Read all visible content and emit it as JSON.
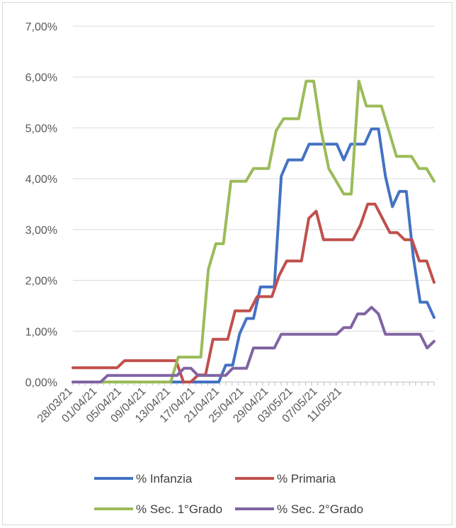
{
  "chart_data": {
    "type": "line",
    "title": "",
    "xlabel": "",
    "ylabel": "",
    "ylim": [
      0,
      0.07
    ],
    "y_ticks": [
      "0,00%",
      "1,00%",
      "2,00%",
      "3,00%",
      "4,00%",
      "5,00%",
      "6,00%",
      "7,00%"
    ],
    "x_tick_labels": [
      "28/03/21",
      "01/04/21",
      "05/04/21",
      "09/04/21",
      "13/04/21",
      "17/04/21",
      "21/04/21",
      "25/04/21",
      "29/04/21",
      "03/05/21",
      "07/05/21",
      "11/05/21"
    ],
    "x_start": "28/03/21",
    "x_end": "15/05/21",
    "grid": "horizontal",
    "legend_position": "bottom",
    "series": [
      {
        "name": "% Infanzia",
        "color": "#4472c4",
        "values": [
          0,
          0,
          0,
          0,
          0,
          0,
          0,
          0,
          0,
          0,
          0,
          0,
          0,
          0,
          0,
          0,
          0,
          0,
          0,
          0,
          0,
          0,
          0.0033,
          0.0033,
          0.0095,
          0.0125,
          0.0125,
          0.0187,
          0.0187,
          0.0187,
          0.0405,
          0.0437,
          0.0437,
          0.0437,
          0.0468,
          0.0468,
          0.0468,
          0.0468,
          0.0468,
          0.0437,
          0.0468,
          0.0468,
          0.0468,
          0.0498,
          0.0498,
          0.0405,
          0.0345,
          0.0375,
          0.0375,
          0.0247,
          0.0157,
          0.0157,
          0.0127
        ]
      },
      {
        "name": "% Primaria",
        "color": "#c0504d",
        "values": [
          0.0028,
          0.0028,
          0.0028,
          0.0028,
          0.0028,
          0.0028,
          0.0028,
          0.0042,
          0.0042,
          0.0042,
          0.0042,
          0.0042,
          0.0042,
          0.0042,
          0.0042,
          0,
          0,
          0.0014,
          0.0014,
          0.0084,
          0.0084,
          0.0084,
          0.014,
          0.014,
          0.014,
          0.0168,
          0.0168,
          0.0168,
          0.021,
          0.0238,
          0.0238,
          0.0238,
          0.0322,
          0.0336,
          0.028,
          0.028,
          0.028,
          0.028,
          0.028,
          0.0308,
          0.035,
          0.035,
          0.0322,
          0.0294,
          0.0294,
          0.028,
          0.028,
          0.0238,
          0.0238,
          0.0196
        ]
      },
      {
        "name": "% Sec. 1°Grado",
        "color": "#9bbb59",
        "values": [
          0,
          0,
          0,
          0,
          0,
          0,
          0,
          0,
          0,
          0,
          0,
          0,
          0,
          0,
          0.0049,
          0.0049,
          0.0049,
          0.0049,
          0.0222,
          0.0272,
          0.0272,
          0.0395,
          0.0395,
          0.0395,
          0.042,
          0.042,
          0.042,
          0.0494,
          0.0518,
          0.0518,
          0.0518,
          0.0592,
          0.0592,
          0.0494,
          0.042,
          0.0395,
          0.037,
          0.037,
          0.0592,
          0.0543,
          0.0543,
          0.0543,
          0.0494,
          0.0444,
          0.0444,
          0.0444,
          0.042,
          0.042,
          0.0395
        ]
      },
      {
        "name": "% Sec. 2°Grado",
        "color": "#8064a2",
        "values": [
          0,
          0,
          0,
          0,
          0,
          0.0013,
          0.0013,
          0.0013,
          0.0013,
          0.0013,
          0.0013,
          0.0013,
          0.0013,
          0.0013,
          0.0013,
          0.0013,
          0.0027,
          0.0027,
          0.0013,
          0.0013,
          0.0013,
          0.0013,
          0.0013,
          0.0027,
          0.0027,
          0.0027,
          0.0067,
          0.0067,
          0.0067,
          0.0067,
          0.0094,
          0.0094,
          0.0094,
          0.0094,
          0.0094,
          0.0094,
          0.0094,
          0.0094,
          0.0094,
          0.0107,
          0.0107,
          0.0134,
          0.0134,
          0.0147,
          0.0134,
          0.0094,
          0.0094,
          0.0094,
          0.0094,
          0.0094,
          0.0094,
          0.0067,
          0.008
        ]
      }
    ]
  }
}
